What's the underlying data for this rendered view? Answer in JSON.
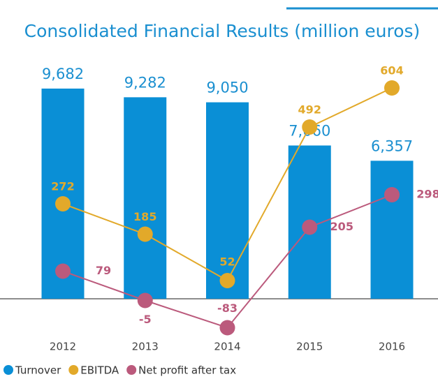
{
  "chart_data": {
    "type": "bar",
    "title": "Consolidated Financial Results (million euros)",
    "categories": [
      "2012",
      "2013",
      "2014",
      "2015",
      "2016"
    ],
    "ylim": [
      -1670,
      11190
    ],
    "y2lim": [
      -104,
      696
    ],
    "series": [
      {
        "name": "Turnover",
        "type": "bar",
        "color": "#0a8fd6",
        "values": [
          9682,
          9282,
          9050,
          7060,
          6357
        ],
        "value_labels": [
          "9,682",
          "9,282",
          "9,050",
          "7,060",
          "6,357"
        ]
      },
      {
        "name": "EBITDA",
        "type": "line",
        "axis": "y2",
        "color": "#e2a92a",
        "values": [
          272,
          185,
          52,
          492,
          604
        ]
      },
      {
        "name": "Net profit after tax",
        "type": "line",
        "axis": "y2",
        "color": "#bb5a7c",
        "values": [
          79,
          -5,
          -83,
          205,
          298
        ]
      }
    ]
  }
}
